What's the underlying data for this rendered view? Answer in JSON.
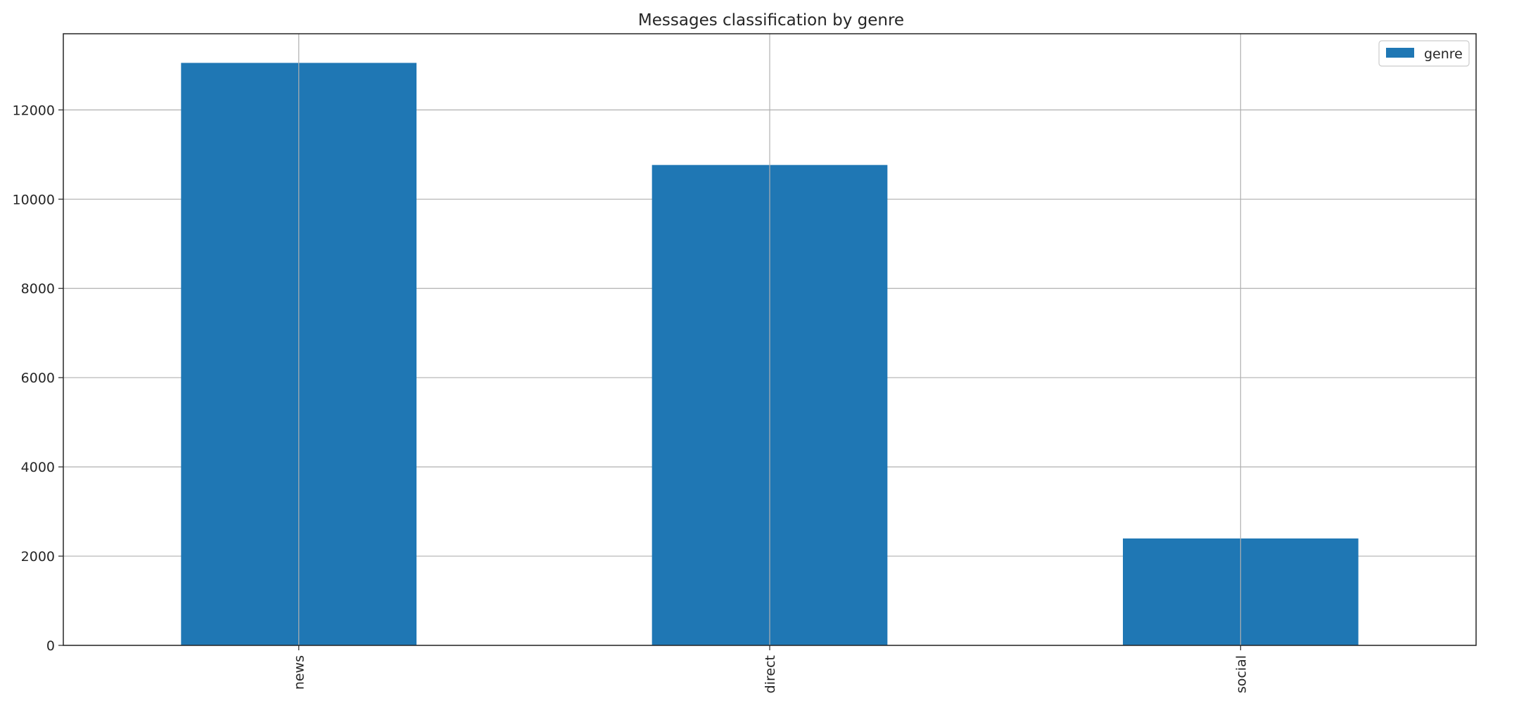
{
  "chart_data": {
    "type": "bar",
    "title": "Messages classification by genre",
    "xlabel": "",
    "ylabel": "",
    "categories": [
      "news",
      "direct",
      "social"
    ],
    "series": [
      {
        "name": "genre",
        "values": [
          13054,
          10766,
          2396
        ]
      }
    ],
    "ylim": [
      0,
      13707
    ],
    "yticks": [
      0,
      2000,
      4000,
      6000,
      8000,
      10000,
      12000
    ],
    "grid": true,
    "legend_position": "top-right",
    "bar_color": "#1f77b4",
    "x_tick_rotation": "vertical"
  }
}
